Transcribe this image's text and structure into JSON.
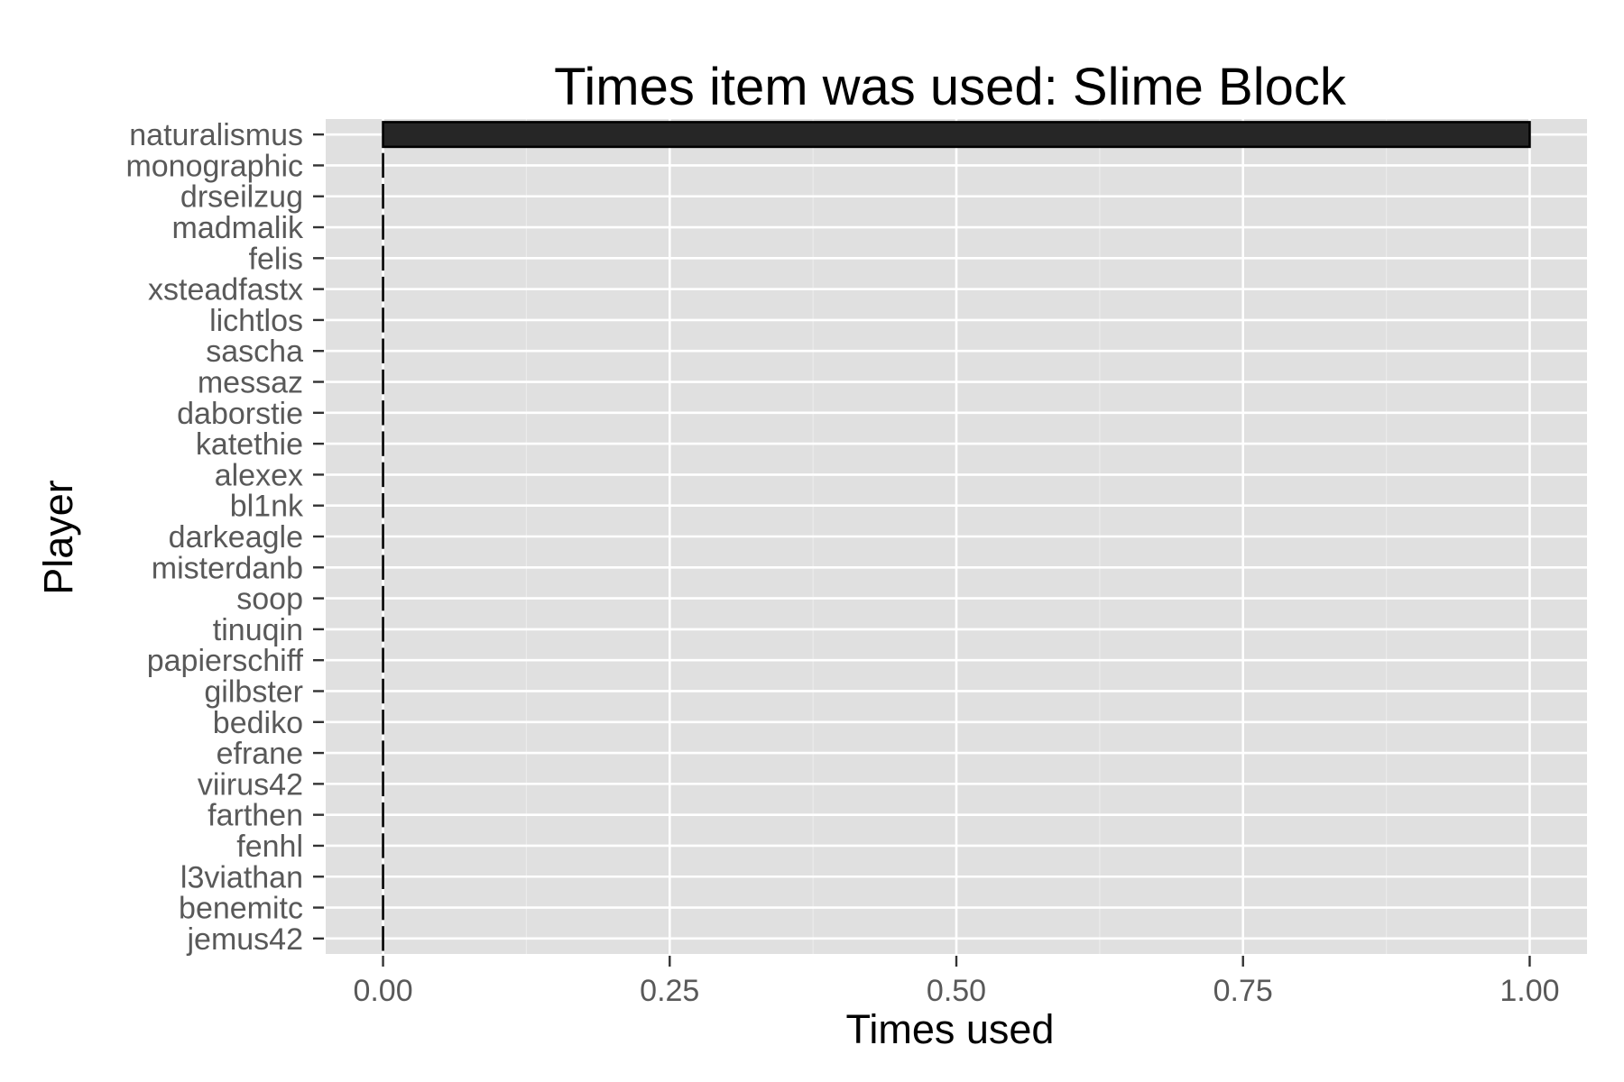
{
  "chart_data": {
    "type": "bar",
    "orientation": "horizontal",
    "title": "Times item was used: Slime Block",
    "xlabel": "Times used",
    "ylabel": "Player",
    "xlim": [
      -0.05,
      1.05
    ],
    "xticks": [
      "0.00",
      "0.25",
      "0.50",
      "0.75",
      "1.00"
    ],
    "xtick_values": [
      0,
      0.25,
      0.5,
      0.75,
      1
    ],
    "grid": true,
    "legend": "none",
    "categories": [
      "naturalismus",
      "monographic",
      "drseilzug",
      "madmalik",
      "felis",
      "xsteadfastx",
      "lichtlos",
      "sascha",
      "messaz",
      "daborstie",
      "katethie",
      "alexex",
      "bl1nk",
      "darkeagle",
      "misterdanb",
      "soop",
      "tinuqin",
      "papierschiff",
      "gilbster",
      "bediko",
      "efrane",
      "viirus42",
      "farthen",
      "fenhl",
      "l3viathan",
      "benemitc",
      "jemus42"
    ],
    "values": [
      1,
      0,
      0,
      0,
      0,
      0,
      0,
      0,
      0,
      0,
      0,
      0,
      0,
      0,
      0,
      0,
      0,
      0,
      0,
      0,
      0,
      0,
      0,
      0,
      0,
      0,
      0
    ],
    "colors": {
      "panel": "#e0e0e0",
      "grid_major": "#ffffff",
      "grid_minor": "#ebebeb",
      "bar_fill": "#262626",
      "bar_stroke": "#000000",
      "tick_text": "#595959",
      "tick_mark": "#333333"
    }
  }
}
